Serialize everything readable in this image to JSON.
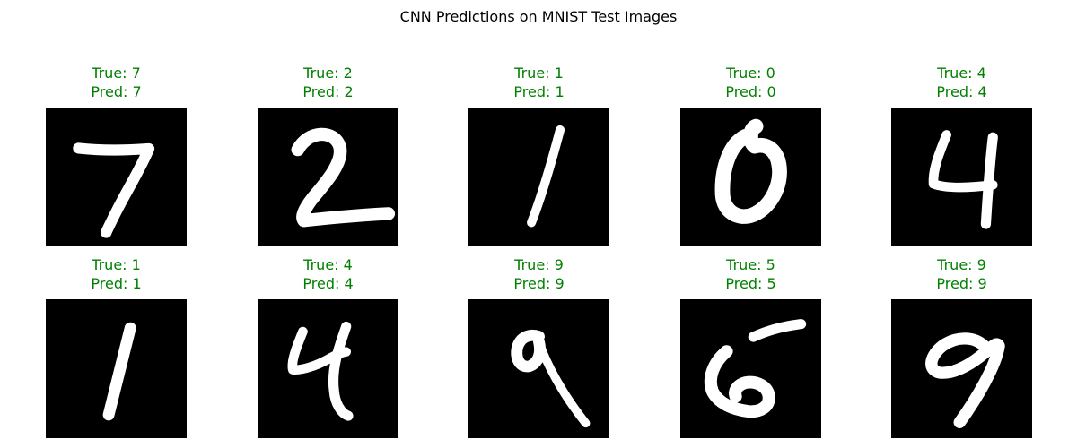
{
  "figure": {
    "title": "CNN Predictions on MNIST Test Images",
    "correct_color": "#008000"
  },
  "panels": [
    {
      "true_text": "True: 7",
      "pred_text": "Pred: 7",
      "true_label": 7,
      "pred_label": 7,
      "correct": true
    },
    {
      "true_text": "True: 2",
      "pred_text": "Pred: 2",
      "true_label": 2,
      "pred_label": 2,
      "correct": true
    },
    {
      "true_text": "True: 1",
      "pred_text": "Pred: 1",
      "true_label": 1,
      "pred_label": 1,
      "correct": true
    },
    {
      "true_text": "True: 0",
      "pred_text": "Pred: 0",
      "true_label": 0,
      "pred_label": 0,
      "correct": true
    },
    {
      "true_text": "True: 4",
      "pred_text": "Pred: 4",
      "true_label": 4,
      "pred_label": 4,
      "correct": true
    },
    {
      "true_text": "True: 1",
      "pred_text": "Pred: 1",
      "true_label": 1,
      "pred_label": 1,
      "correct": true
    },
    {
      "true_text": "True: 4",
      "pred_text": "Pred: 4",
      "true_label": 4,
      "pred_label": 4,
      "correct": true
    },
    {
      "true_text": "True: 9",
      "pred_text": "Pred: 9",
      "true_label": 9,
      "pred_label": 9,
      "correct": true
    },
    {
      "true_text": "True: 5",
      "pred_text": "Pred: 5",
      "true_label": 5,
      "pred_label": 5,
      "correct": true
    },
    {
      "true_text": "True: 9",
      "pred_text": "Pred: 9",
      "true_label": 9,
      "pred_label": 9,
      "correct": true
    }
  ]
}
